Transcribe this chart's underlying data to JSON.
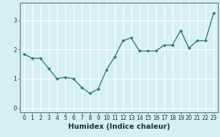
{
  "x": [
    0,
    1,
    2,
    3,
    4,
    5,
    6,
    7,
    8,
    9,
    10,
    11,
    12,
    13,
    14,
    15,
    16,
    17,
    18,
    19,
    20,
    21,
    22,
    23
  ],
  "y": [
    1.85,
    1.7,
    1.7,
    1.35,
    1.0,
    1.05,
    1.0,
    0.7,
    0.5,
    0.65,
    1.3,
    1.75,
    2.3,
    2.4,
    1.95,
    1.95,
    1.95,
    2.15,
    2.15,
    2.65,
    2.05,
    2.3,
    2.3,
    3.25
  ],
  "xlabel": "Humidex (Indice chaleur)",
  "ylabel": "",
  "xlim": [
    -0.5,
    23.5
  ],
  "ylim": [
    -0.15,
    3.6
  ],
  "yticks": [
    0,
    1,
    2,
    3
  ],
  "xticks": [
    0,
    1,
    2,
    3,
    4,
    5,
    6,
    7,
    8,
    9,
    10,
    11,
    12,
    13,
    14,
    15,
    16,
    17,
    18,
    19,
    20,
    21,
    22,
    23
  ],
  "line_color": "#2d7a6e",
  "marker": "D",
  "marker_size": 2.0,
  "bg_color": "#d6f0f0",
  "grid_color": "#ffffff",
  "grid_minor_color": "#e8f8f8",
  "axis_label_color": "#1a3535",
  "tick_label_color": "#1a3535",
  "xlabel_fontsize": 7.5,
  "tick_fontsize": 5.8,
  "line_width": 1.0,
  "spine_color": "#607070"
}
